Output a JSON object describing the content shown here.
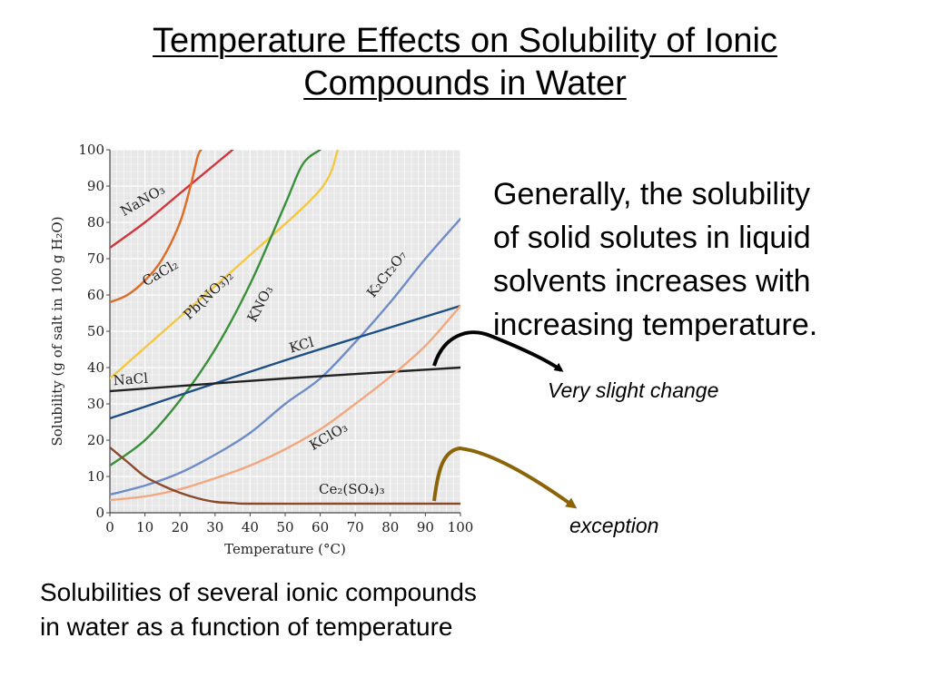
{
  "slide": {
    "title_line1": "Temperature Effects on Solubility of Ionic",
    "title_line2": "Compounds in Water",
    "body_lines": [
      "Generally, the solubility",
      "of solid solutes in liquid",
      "solvents increases with",
      "increasing temperature."
    ],
    "callout_slight": "Very slight change",
    "callout_exception": "exception",
    "caption_lines": [
      "Solubilities of several ionic compounds",
      "in water as a function of temperature"
    ]
  },
  "colors": {
    "plot_background": "#e7e7e7",
    "grid": "#ffffff",
    "arrow_black": "#000000",
    "arrow_exception": "#8b6408"
  },
  "chart_data": {
    "type": "line",
    "title": "",
    "xlabel": "Temperature (°C)",
    "ylabel": "Solubility (g of salt in 100 g H₂O)",
    "xlim": [
      0,
      100
    ],
    "ylim": [
      0,
      100
    ],
    "xticks": [
      0,
      10,
      20,
      30,
      40,
      50,
      60,
      70,
      80,
      90,
      100
    ],
    "yticks": [
      0,
      10,
      20,
      30,
      40,
      50,
      60,
      70,
      80,
      90,
      100
    ],
    "grid": true,
    "series": [
      {
        "name": "NaNO₃",
        "color": "#d2343c",
        "x": [
          0,
          10,
          20,
          30,
          35
        ],
        "y": [
          73,
          80,
          88,
          96,
          100
        ]
      },
      {
        "name": "CaCl₂",
        "color": "#e06a24",
        "x": [
          0,
          5,
          10,
          15,
          20,
          23,
          25,
          26
        ],
        "y": [
          58,
          60,
          64,
          70,
          80,
          90,
          98,
          100
        ]
      },
      {
        "name": "Pb(NO₃)₂",
        "color": "#f5c842",
        "x": [
          0,
          20,
          40,
          60,
          65
        ],
        "y": [
          37,
          54,
          71,
          89,
          100
        ]
      },
      {
        "name": "KNO₃",
        "color": "#3a8f3a",
        "x": [
          0,
          10,
          20,
          30,
          40,
          50,
          55,
          60
        ],
        "y": [
          13,
          20,
          31,
          45,
          63,
          85,
          96,
          100
        ]
      },
      {
        "name": "K₂Cr₂O₇",
        "color": "#6f8cc8",
        "x": [
          0,
          10,
          20,
          30,
          40,
          50,
          60,
          70,
          80,
          90,
          100
        ],
        "y": [
          5,
          7.5,
          11,
          16,
          22,
          30,
          37,
          47,
          58,
          70,
          81
        ]
      },
      {
        "name": "KCl",
        "color": "#1d4f86",
        "x": [
          0,
          50,
          100
        ],
        "y": [
          26,
          42,
          57
        ]
      },
      {
        "name": "NaCl",
        "color": "#222222",
        "x": [
          0,
          50,
          100
        ],
        "y": [
          33.5,
          37,
          40
        ]
      },
      {
        "name": "KClO₃",
        "color": "#f2a77e",
        "x": [
          0,
          10,
          20,
          30,
          40,
          50,
          60,
          70,
          80,
          90,
          100
        ],
        "y": [
          3.5,
          4.5,
          6.5,
          9.5,
          13,
          17.5,
          23,
          30,
          37.5,
          46,
          57
        ]
      },
      {
        "name": "Ce₂(SO₄)₃",
        "color": "#8b4a2c",
        "x": [
          0,
          5,
          10,
          15,
          20,
          25,
          30,
          35,
          40,
          60,
          80,
          100
        ],
        "y": [
          18,
          14,
          10,
          7.5,
          5.5,
          4,
          3,
          2.7,
          2.5,
          2.5,
          2.5,
          2.5
        ]
      }
    ],
    "labels": [
      {
        "series": "NaNO₃",
        "text": "NaNO₃",
        "x": 10,
        "y": 85,
        "angle": -30
      },
      {
        "series": "CaCl₂",
        "text": "CaCl₂",
        "x": 15,
        "y": 65,
        "angle": -30
      },
      {
        "series": "Pb(NO₃)₂",
        "text": "Pb(NO₃)₂",
        "x": 29,
        "y": 59,
        "angle": -44
      },
      {
        "series": "KNO₃",
        "text": "KNO₃",
        "x": 44,
        "y": 57,
        "angle": -62
      },
      {
        "series": "K₂Cr₂O₇",
        "text": "K₂Cr₂O₇",
        "x": 80,
        "y": 65,
        "angle": -52
      },
      {
        "series": "KCl",
        "text": "KCl",
        "x": 55,
        "y": 45,
        "angle": -16
      },
      {
        "series": "NaCl",
        "text": "NaCl",
        "x": 6,
        "y": 35.5,
        "angle": -4
      },
      {
        "series": "KClO₃",
        "text": "KClO₃",
        "x": 63,
        "y": 20,
        "angle": -30
      },
      {
        "series": "Ce₂(SO₄)₃",
        "text": "Ce₂(SO₄)₃",
        "x": 69,
        "y": 5.3,
        "angle": 0
      }
    ]
  }
}
